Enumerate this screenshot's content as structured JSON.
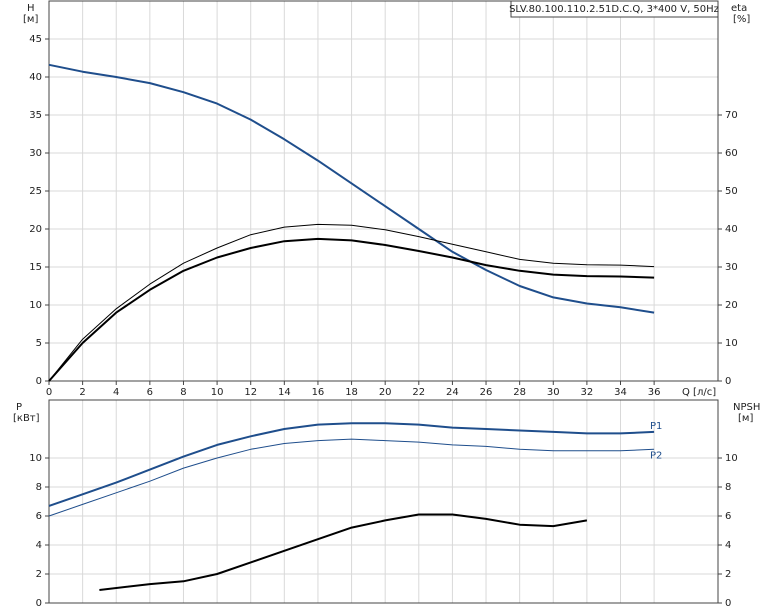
{
  "chart_data": [
    {
      "type": "line",
      "title": "SLV.80.100.110.2.51D.C.Q, 3*400 V, 50Hz",
      "y_label": "H",
      "y_unit": "[м]",
      "y2_label": "eta",
      "y2_unit": "[%]",
      "x_label": "Q [л/с]",
      "x": [
        0,
        2,
        4,
        6,
        8,
        10,
        12,
        14,
        16,
        18,
        20,
        22,
        24,
        26,
        28,
        30,
        32,
        34,
        36
      ],
      "xlim": [
        0,
        39.8
      ],
      "xticks": [
        0,
        2,
        4,
        6,
        8,
        10,
        12,
        14,
        16,
        18,
        20,
        22,
        24,
        26,
        28,
        30,
        32,
        34,
        36
      ],
      "ylim": [
        0,
        50
      ],
      "yticks": [
        0,
        5,
        10,
        15,
        20,
        25,
        30,
        35,
        40,
        45
      ],
      "y2lim": [
        0,
        100
      ],
      "y2ticks": [
        0,
        10,
        20,
        30,
        40,
        50,
        60,
        70
      ],
      "grid": true,
      "series": [
        {
          "color": "#1f4e8c",
          "width": 2,
          "values": [
            41.6,
            40.7,
            40,
            39.2,
            38,
            36.5,
            34.4,
            31.8,
            29,
            26,
            23,
            20,
            17,
            14.6,
            12.5,
            11,
            10.2,
            9.7,
            9.0
          ]
        },
        {
          "color": "#000000",
          "width": 1,
          "axis": "y2",
          "values": [
            0,
            11,
            19,
            25.5,
            31,
            35,
            38.5,
            40.5,
            41.2,
            41,
            39.8,
            38,
            36,
            34,
            32,
            31,
            30.6,
            30.5,
            30.1
          ]
        },
        {
          "color": "#000000",
          "width": 2,
          "axis": "y2",
          "values": [
            0,
            10,
            18,
            24,
            29,
            32.5,
            35,
            36.8,
            37.4,
            37,
            35.8,
            34.2,
            32.5,
            30.5,
            29,
            28,
            27.6,
            27.5,
            27.2
          ]
        }
      ]
    },
    {
      "type": "line",
      "y_label": "P",
      "y_unit": "[кВт]",
      "y2_label": "NPSH",
      "y2_unit": "[м]",
      "x": [
        0,
        2,
        4,
        6,
        8,
        10,
        12,
        14,
        16,
        18,
        20,
        22,
        24,
        26,
        28,
        30,
        32,
        34,
        36
      ],
      "xlim": [
        0,
        39.8
      ],
      "ylim": [
        0,
        14
      ],
      "yticks": [
        0,
        2,
        4,
        6,
        8,
        10
      ],
      "y2lim": [
        0,
        14
      ],
      "y2ticks": [
        0,
        2,
        4,
        6,
        8,
        10
      ],
      "grid": true,
      "series": [
        {
          "name": "P1",
          "color": "#1f4e8c",
          "width": 2,
          "values": [
            6.7,
            7.5,
            8.3,
            9.2,
            10.1,
            10.9,
            11.5,
            12,
            12.3,
            12.4,
            12.4,
            12.3,
            12.1,
            12,
            11.9,
            11.8,
            11.7,
            11.7,
            11.8
          ]
        },
        {
          "name": "P2",
          "color": "#1f4e8c",
          "width": 1,
          "values": [
            6.0,
            6.8,
            7.6,
            8.4,
            9.3,
            10,
            10.6,
            11,
            11.2,
            11.3,
            11.2,
            11.1,
            10.9,
            10.8,
            10.6,
            10.5,
            10.5,
            10.5,
            10.6
          ]
        },
        {
          "color": "#000000",
          "width": 2,
          "axis": "y2",
          "x": [
            3,
            6,
            8,
            10,
            12,
            14,
            16,
            18,
            20,
            22,
            24,
            26,
            28,
            30,
            32
          ],
          "values": [
            0.9,
            1.3,
            1.5,
            2.0,
            2.8,
            3.6,
            4.4,
            5.2,
            5.7,
            6.1,
            6.1,
            5.8,
            5.4,
            5.3,
            5.7
          ]
        }
      ]
    }
  ]
}
